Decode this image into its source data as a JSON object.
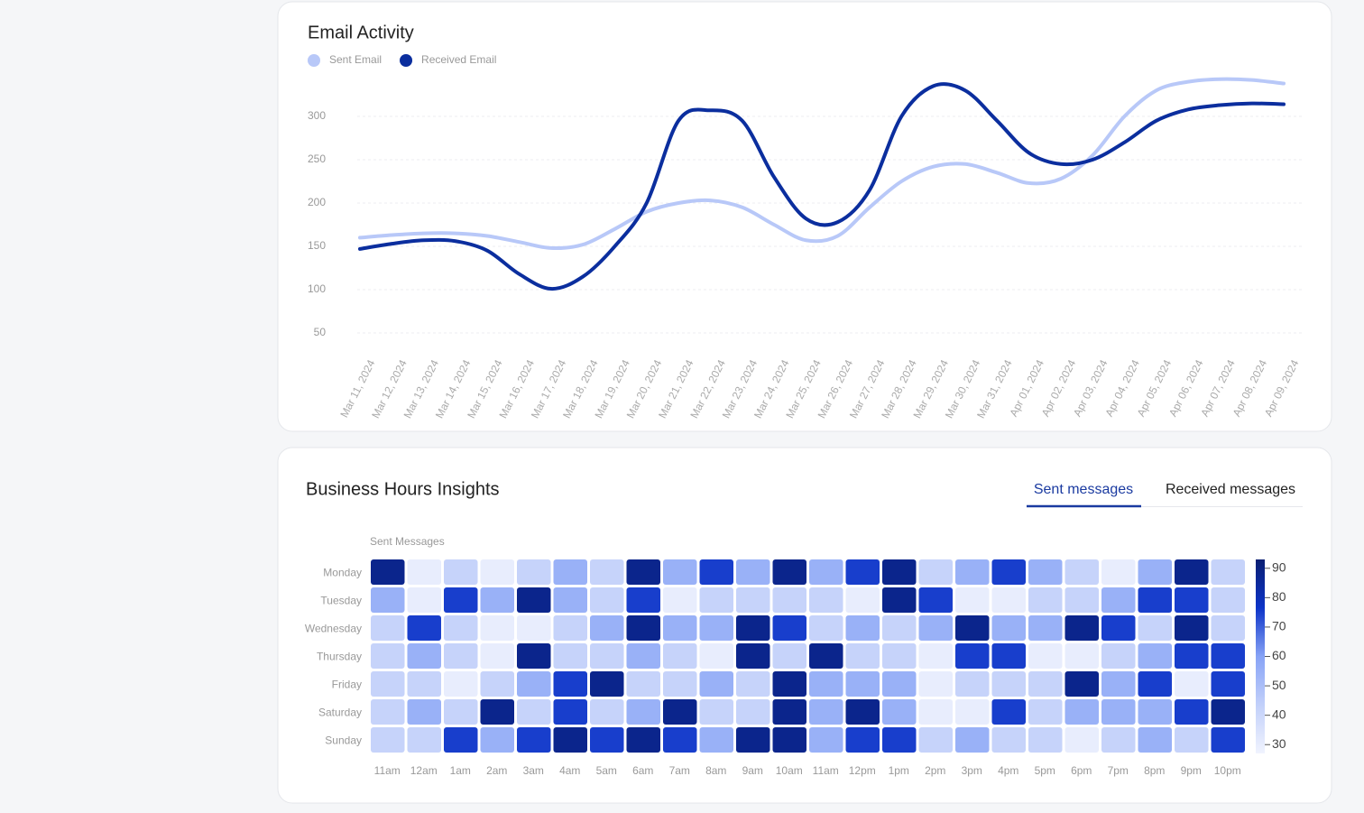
{
  "chart_data": [
    {
      "type": "line",
      "title": "Email Activity",
      "legend": "top-left",
      "grid": true,
      "categories": [
        "Mar 11, 2024",
        "Mar 12, 2024",
        "Mar 13, 2024",
        "Mar 14, 2024",
        "Mar 15, 2024",
        "Mar 16, 2024",
        "Mar 17, 2024",
        "Mar 18, 2024",
        "Mar 19, 2024",
        "Mar 20, 2024",
        "Mar 21, 2024",
        "Mar 22, 2024",
        "Mar 23, 2024",
        "Mar 24, 2024",
        "Mar 25, 2024",
        "Mar 26, 2024",
        "Mar 27, 2024",
        "Mar 28, 2024",
        "Mar 29, 2024",
        "Mar 30, 2024",
        "Mar 31, 2024",
        "Apr 01, 2024",
        "Apr 02, 2024",
        "Apr 03, 2024",
        "Apr 04, 2024",
        "Apr 05, 2024",
        "Apr 06, 2024",
        "Apr 07, 2024",
        "Apr 08, 2024",
        "Apr 09, 2024"
      ],
      "series": [
        {
          "name": "Sent Email",
          "color": "#b8c8f8",
          "values": [
            160,
            163,
            165,
            165,
            162,
            155,
            148,
            152,
            170,
            190,
            200,
            203,
            195,
            175,
            157,
            162,
            195,
            225,
            242,
            245,
            235,
            223,
            228,
            255,
            300,
            330,
            340,
            343,
            342,
            338
          ]
        },
        {
          "name": "Received Email",
          "color": "#0b2e9e",
          "values": [
            147,
            153,
            157,
            156,
            145,
            118,
            101,
            115,
            150,
            200,
            295,
            307,
            295,
            230,
            182,
            178,
            215,
            300,
            335,
            330,
            295,
            258,
            245,
            250,
            270,
            295,
            308,
            313,
            315,
            314
          ]
        }
      ],
      "ylim": [
        50,
        350
      ],
      "yticks": [
        50,
        100,
        150,
        200,
        250,
        300
      ]
    },
    {
      "type": "heatmap",
      "title": "Business Hours Insights",
      "tabs": [
        "Sent messages",
        "Received messages"
      ],
      "subtitle": "Sent Messages",
      "x": [
        "11am",
        "12am",
        "1am",
        "2am",
        "3am",
        "4am",
        "5am",
        "6am",
        "7am",
        "8am",
        "9am",
        "10am",
        "11am",
        "12pm",
        "1pm",
        "2pm",
        "3pm",
        "4pm",
        "5pm",
        "6pm",
        "7pm",
        "8pm",
        "9pm",
        "10pm"
      ],
      "y": [
        "Monday",
        "Tuesday",
        "Wednesday",
        "Thursday",
        "Friday",
        "Saturday",
        "Sunday"
      ],
      "values": [
        [
          88,
          30,
          42,
          30,
          42,
          55,
          42,
          88,
          55,
          75,
          55,
          88,
          55,
          75,
          88,
          42,
          55,
          75,
          55,
          42,
          30,
          55,
          88,
          42
        ],
        [
          55,
          30,
          75,
          55,
          88,
          55,
          42,
          75,
          30,
          42,
          42,
          42,
          42,
          30,
          88,
          75,
          30,
          30,
          42,
          42,
          55,
          75,
          75,
          42
        ],
        [
          42,
          75,
          42,
          30,
          30,
          42,
          55,
          88,
          55,
          55,
          88,
          75,
          42,
          55,
          42,
          55,
          88,
          55,
          55,
          88,
          75,
          42,
          88,
          42
        ],
        [
          42,
          55,
          42,
          30,
          88,
          42,
          42,
          55,
          42,
          30,
          88,
          42,
          88,
          42,
          42,
          30,
          75,
          75,
          30,
          30,
          42,
          55,
          75,
          75
        ],
        [
          42,
          42,
          30,
          42,
          55,
          75,
          88,
          42,
          42,
          55,
          42,
          88,
          55,
          55,
          55,
          30,
          42,
          42,
          42,
          88,
          55,
          75,
          30,
          75
        ],
        [
          42,
          55,
          42,
          88,
          42,
          75,
          42,
          55,
          88,
          42,
          42,
          88,
          55,
          88,
          55,
          30,
          30,
          75,
          42,
          55,
          55,
          55,
          75,
          88
        ],
        [
          42,
          42,
          75,
          55,
          75,
          88,
          75,
          88,
          75,
          55,
          88,
          88,
          55,
          75,
          75,
          42,
          55,
          42,
          42,
          30,
          42,
          55,
          42,
          75
        ]
      ],
      "zlim": [
        27,
        93
      ],
      "zticks": [
        30,
        40,
        50,
        60,
        70,
        80,
        90
      ],
      "colorscale": [
        "#f0f3fe",
        "#c2d0fa",
        "#87a3f6",
        "#0d34c8",
        "#0a1f72"
      ]
    }
  ]
}
